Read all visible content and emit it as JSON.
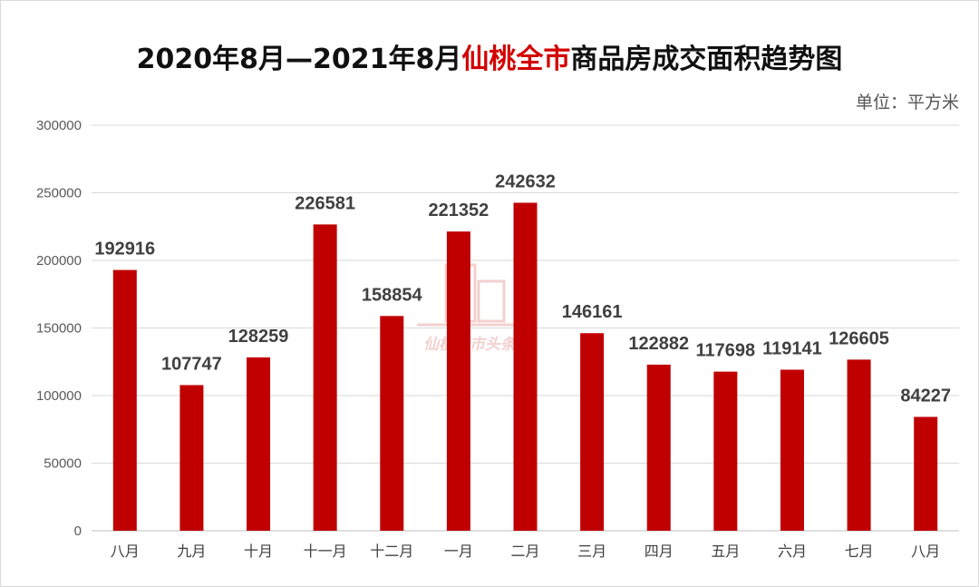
{
  "title": {
    "prefix": "2020年8月—2021年8月",
    "highlight": "仙桃全市",
    "suffix": "商品房成交面积趋势图"
  },
  "unit_label": "单位：平方米",
  "watermark_text": "仙桃楼市头条",
  "colors": {
    "bar": "#c00000",
    "title_highlight": "#d40000",
    "grid": "#d9d9d9"
  },
  "chart_data": {
    "type": "bar",
    "categories": [
      "八月",
      "九月",
      "十月",
      "十一月",
      "十二月",
      "一月",
      "二月",
      "三月",
      "四月",
      "五月",
      "六月",
      "七月",
      "八月"
    ],
    "values": [
      192916,
      107747,
      128259,
      226581,
      158854,
      221352,
      242632,
      146161,
      122882,
      117698,
      119141,
      126605,
      84227
    ],
    "ylim": [
      0,
      300000
    ],
    "yticks": [
      0,
      50000,
      100000,
      150000,
      200000,
      250000,
      300000
    ],
    "grid": true,
    "legend": "none"
  }
}
